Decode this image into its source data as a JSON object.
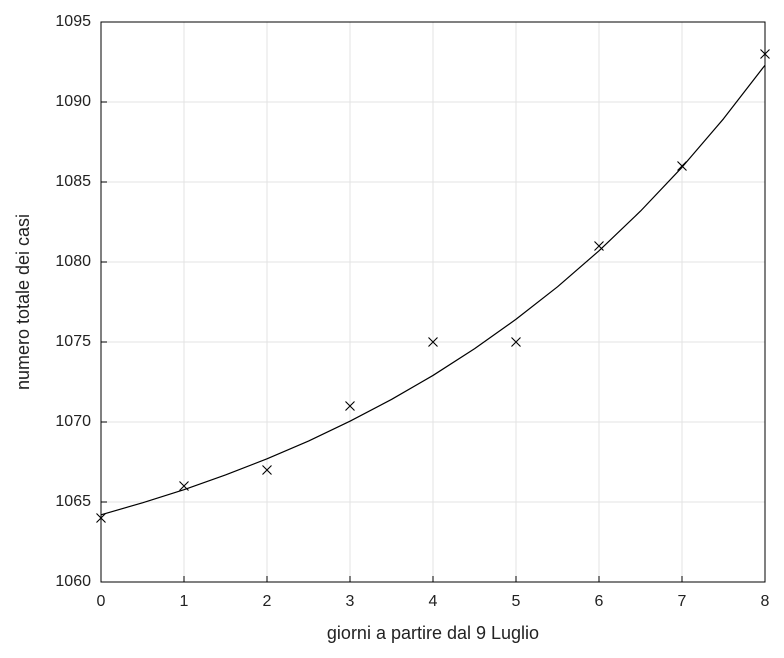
{
  "chart_data": {
    "type": "scatter",
    "xlabel": "giorni a partire dal 9 Luglio",
    "ylabel": "numero totale dei casi",
    "xlim": [
      0,
      8
    ],
    "xticks": [
      0,
      1,
      2,
      3,
      4,
      5,
      6,
      7,
      8
    ],
    "ylim": [
      1060,
      1095
    ],
    "yticks": [
      1060,
      1065,
      1070,
      1075,
      1080,
      1085,
      1090,
      1095
    ],
    "grid": true,
    "series": [
      {
        "style": "markers",
        "color": "#000000",
        "x": [
          0,
          1,
          2,
          3,
          4,
          5,
          6,
          7,
          8
        ],
        "values": [
          1064,
          1066,
          1067,
          1071,
          1075,
          1075,
          1081,
          1086,
          1093
        ]
      },
      {
        "style": "line",
        "color": "#000000",
        "x": [
          0,
          0.5,
          1,
          1.5,
          2,
          2.5,
          3,
          3.5,
          4,
          4.5,
          5,
          5.5,
          6,
          6.5,
          7,
          7.5,
          8
        ],
        "values": [
          1064.2,
          1064.95,
          1065.77,
          1066.69,
          1067.7,
          1068.81,
          1070.05,
          1071.41,
          1072.91,
          1074.58,
          1076.42,
          1078.45,
          1080.7,
          1083.18,
          1085.92,
          1088.95,
          1092.3
        ]
      }
    ]
  }
}
